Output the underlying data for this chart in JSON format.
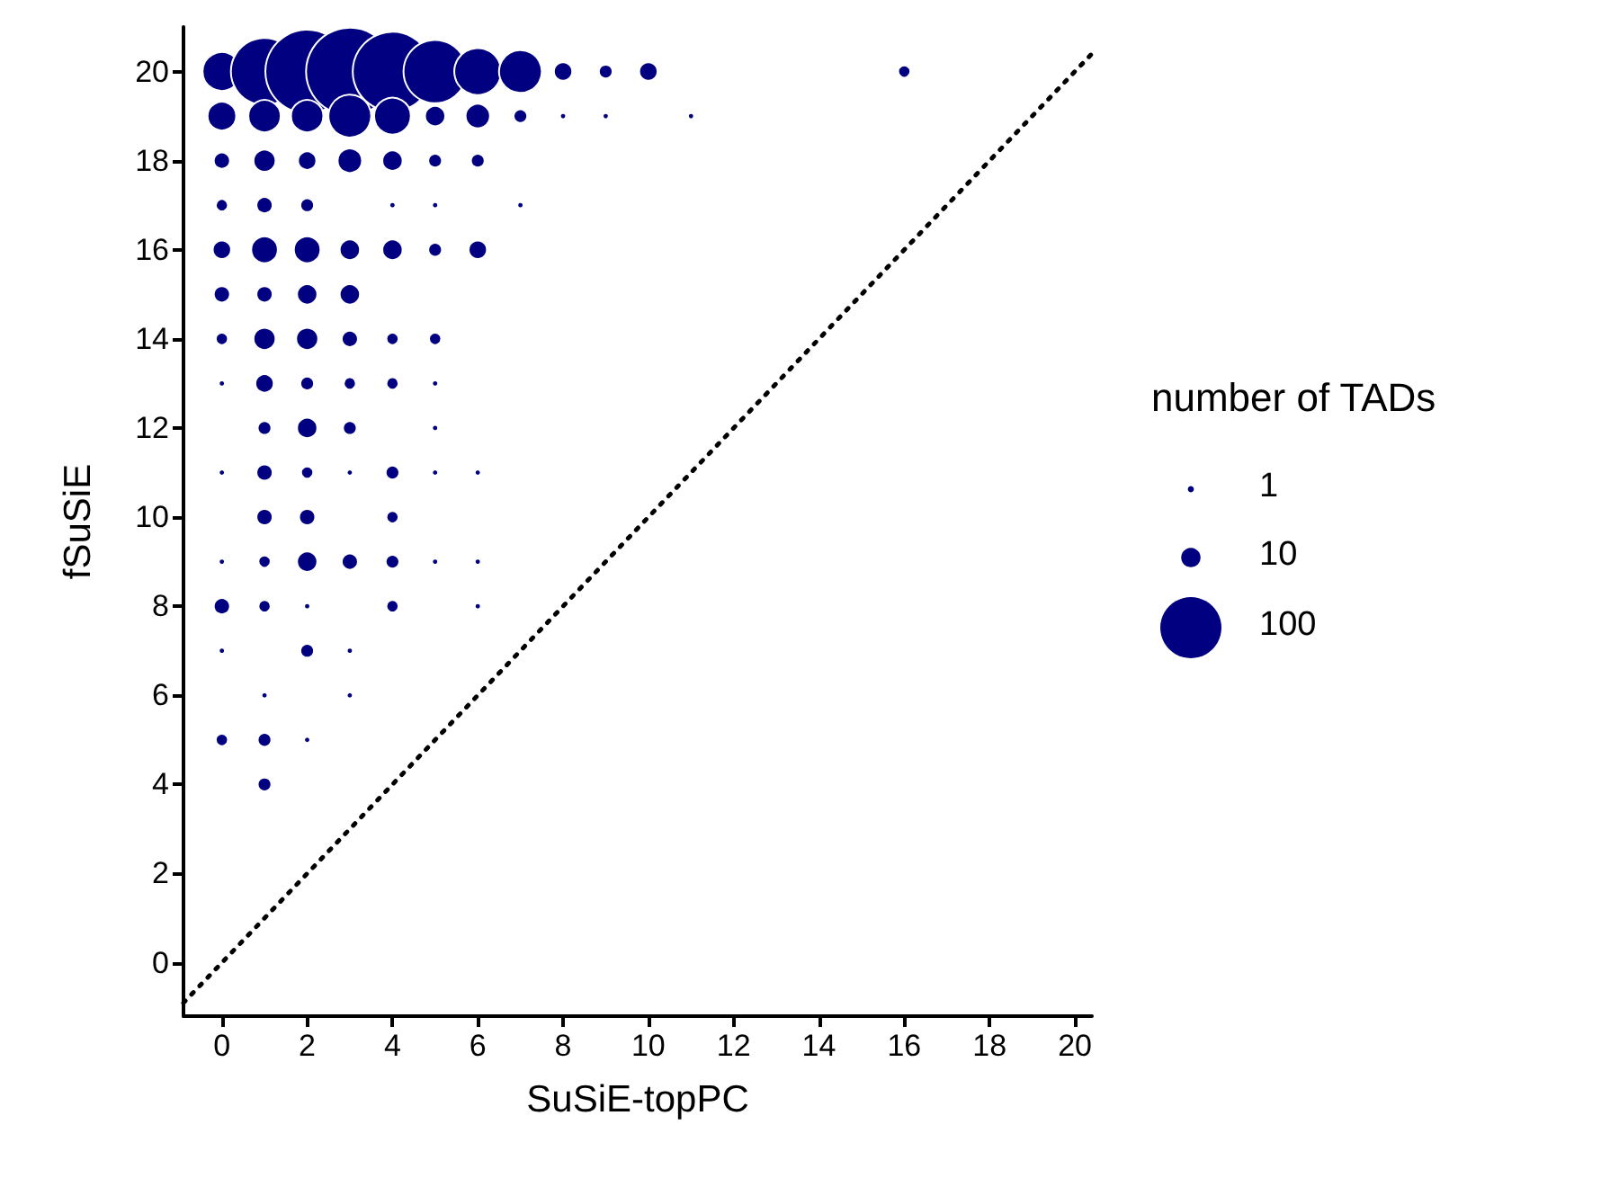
{
  "chart_data": {
    "type": "bubble",
    "xlabel": "SuSiE-topPC",
    "ylabel": "fSuSiE",
    "legend_title": "number of TADs",
    "grid": false,
    "size_legend": [
      1,
      10,
      100
    ],
    "xlim": [
      -0.9,
      20.4
    ],
    "ylim": [
      -1.2,
      21
    ],
    "xticks": [
      0,
      2,
      4,
      6,
      8,
      10,
      12,
      14,
      16,
      18,
      20
    ],
    "yticks": [
      0,
      2,
      4,
      6,
      8,
      10,
      12,
      14,
      16,
      18,
      20
    ],
    "series": [
      {
        "type": "bubble",
        "color": "#000080",
        "marker": "circle",
        "x": [
          0,
          1,
          2,
          3,
          4,
          5,
          6,
          7,
          8,
          9,
          10,
          16,
          0,
          1,
          2,
          3,
          4,
          5,
          6,
          7,
          8,
          9,
          11,
          0,
          1,
          2,
          3,
          4,
          5,
          6,
          0,
          1,
          2,
          4,
          5,
          7,
          0,
          1,
          2,
          3,
          4,
          5,
          6,
          0,
          1,
          2,
          3,
          0,
          1,
          2,
          3,
          4,
          5,
          0,
          1,
          2,
          3,
          4,
          5,
          1,
          2,
          3,
          5,
          0,
          1,
          2,
          3,
          4,
          5,
          6,
          1,
          2,
          4,
          0,
          1,
          2,
          3,
          4,
          5,
          6,
          0,
          1,
          2,
          4,
          6,
          0,
          2,
          3,
          1,
          3,
          0,
          1,
          2,
          1
        ],
        "values": [
          20,
          20,
          20,
          20,
          20,
          20,
          20,
          20,
          20,
          20,
          20,
          20,
          19,
          19,
          19,
          19,
          19,
          19,
          19,
          19,
          19,
          19,
          19,
          18,
          18,
          18,
          18,
          18,
          18,
          18,
          17,
          17,
          17,
          17,
          17,
          17,
          16,
          16,
          16,
          16,
          16,
          16,
          16,
          15,
          15,
          15,
          15,
          14,
          14,
          14,
          14,
          14,
          14,
          13,
          13,
          13,
          13,
          13,
          13,
          12,
          12,
          12,
          12,
          11,
          11,
          11,
          11,
          11,
          11,
          11,
          10,
          10,
          10,
          9,
          9,
          9,
          9,
          9,
          9,
          9,
          8,
          8,
          8,
          8,
          8,
          7,
          7,
          7,
          6,
          6,
          5,
          5,
          5,
          4
        ],
        "sizes": [
          40,
          121,
          187,
          205,
          169,
          107,
          59,
          49,
          9,
          5,
          9,
          4,
          22,
          28,
          28,
          49,
          36,
          11,
          16,
          5,
          1,
          1,
          1,
          7,
          13,
          9,
          16,
          11,
          5,
          5,
          4,
          7,
          5,
          1,
          1,
          1,
          9,
          19,
          19,
          11,
          11,
          5,
          9,
          7,
          7,
          11,
          11,
          4,
          13,
          13,
          7,
          4,
          4,
          1,
          9,
          5,
          4,
          4,
          1,
          5,
          11,
          5,
          1,
          1,
          7,
          4,
          1,
          5,
          1,
          1,
          7,
          7,
          4,
          1,
          4,
          11,
          7,
          5,
          1,
          1,
          7,
          4,
          1,
          4,
          1,
          1,
          5,
          1,
          1,
          1,
          4,
          5,
          1,
          5
        ]
      },
      {
        "type": "line",
        "color": "#000000",
        "line_style": "dotted",
        "marker": "none",
        "x": [
          -0.9,
          20.4
        ],
        "values": [
          -0.9,
          20.4
        ]
      }
    ]
  }
}
